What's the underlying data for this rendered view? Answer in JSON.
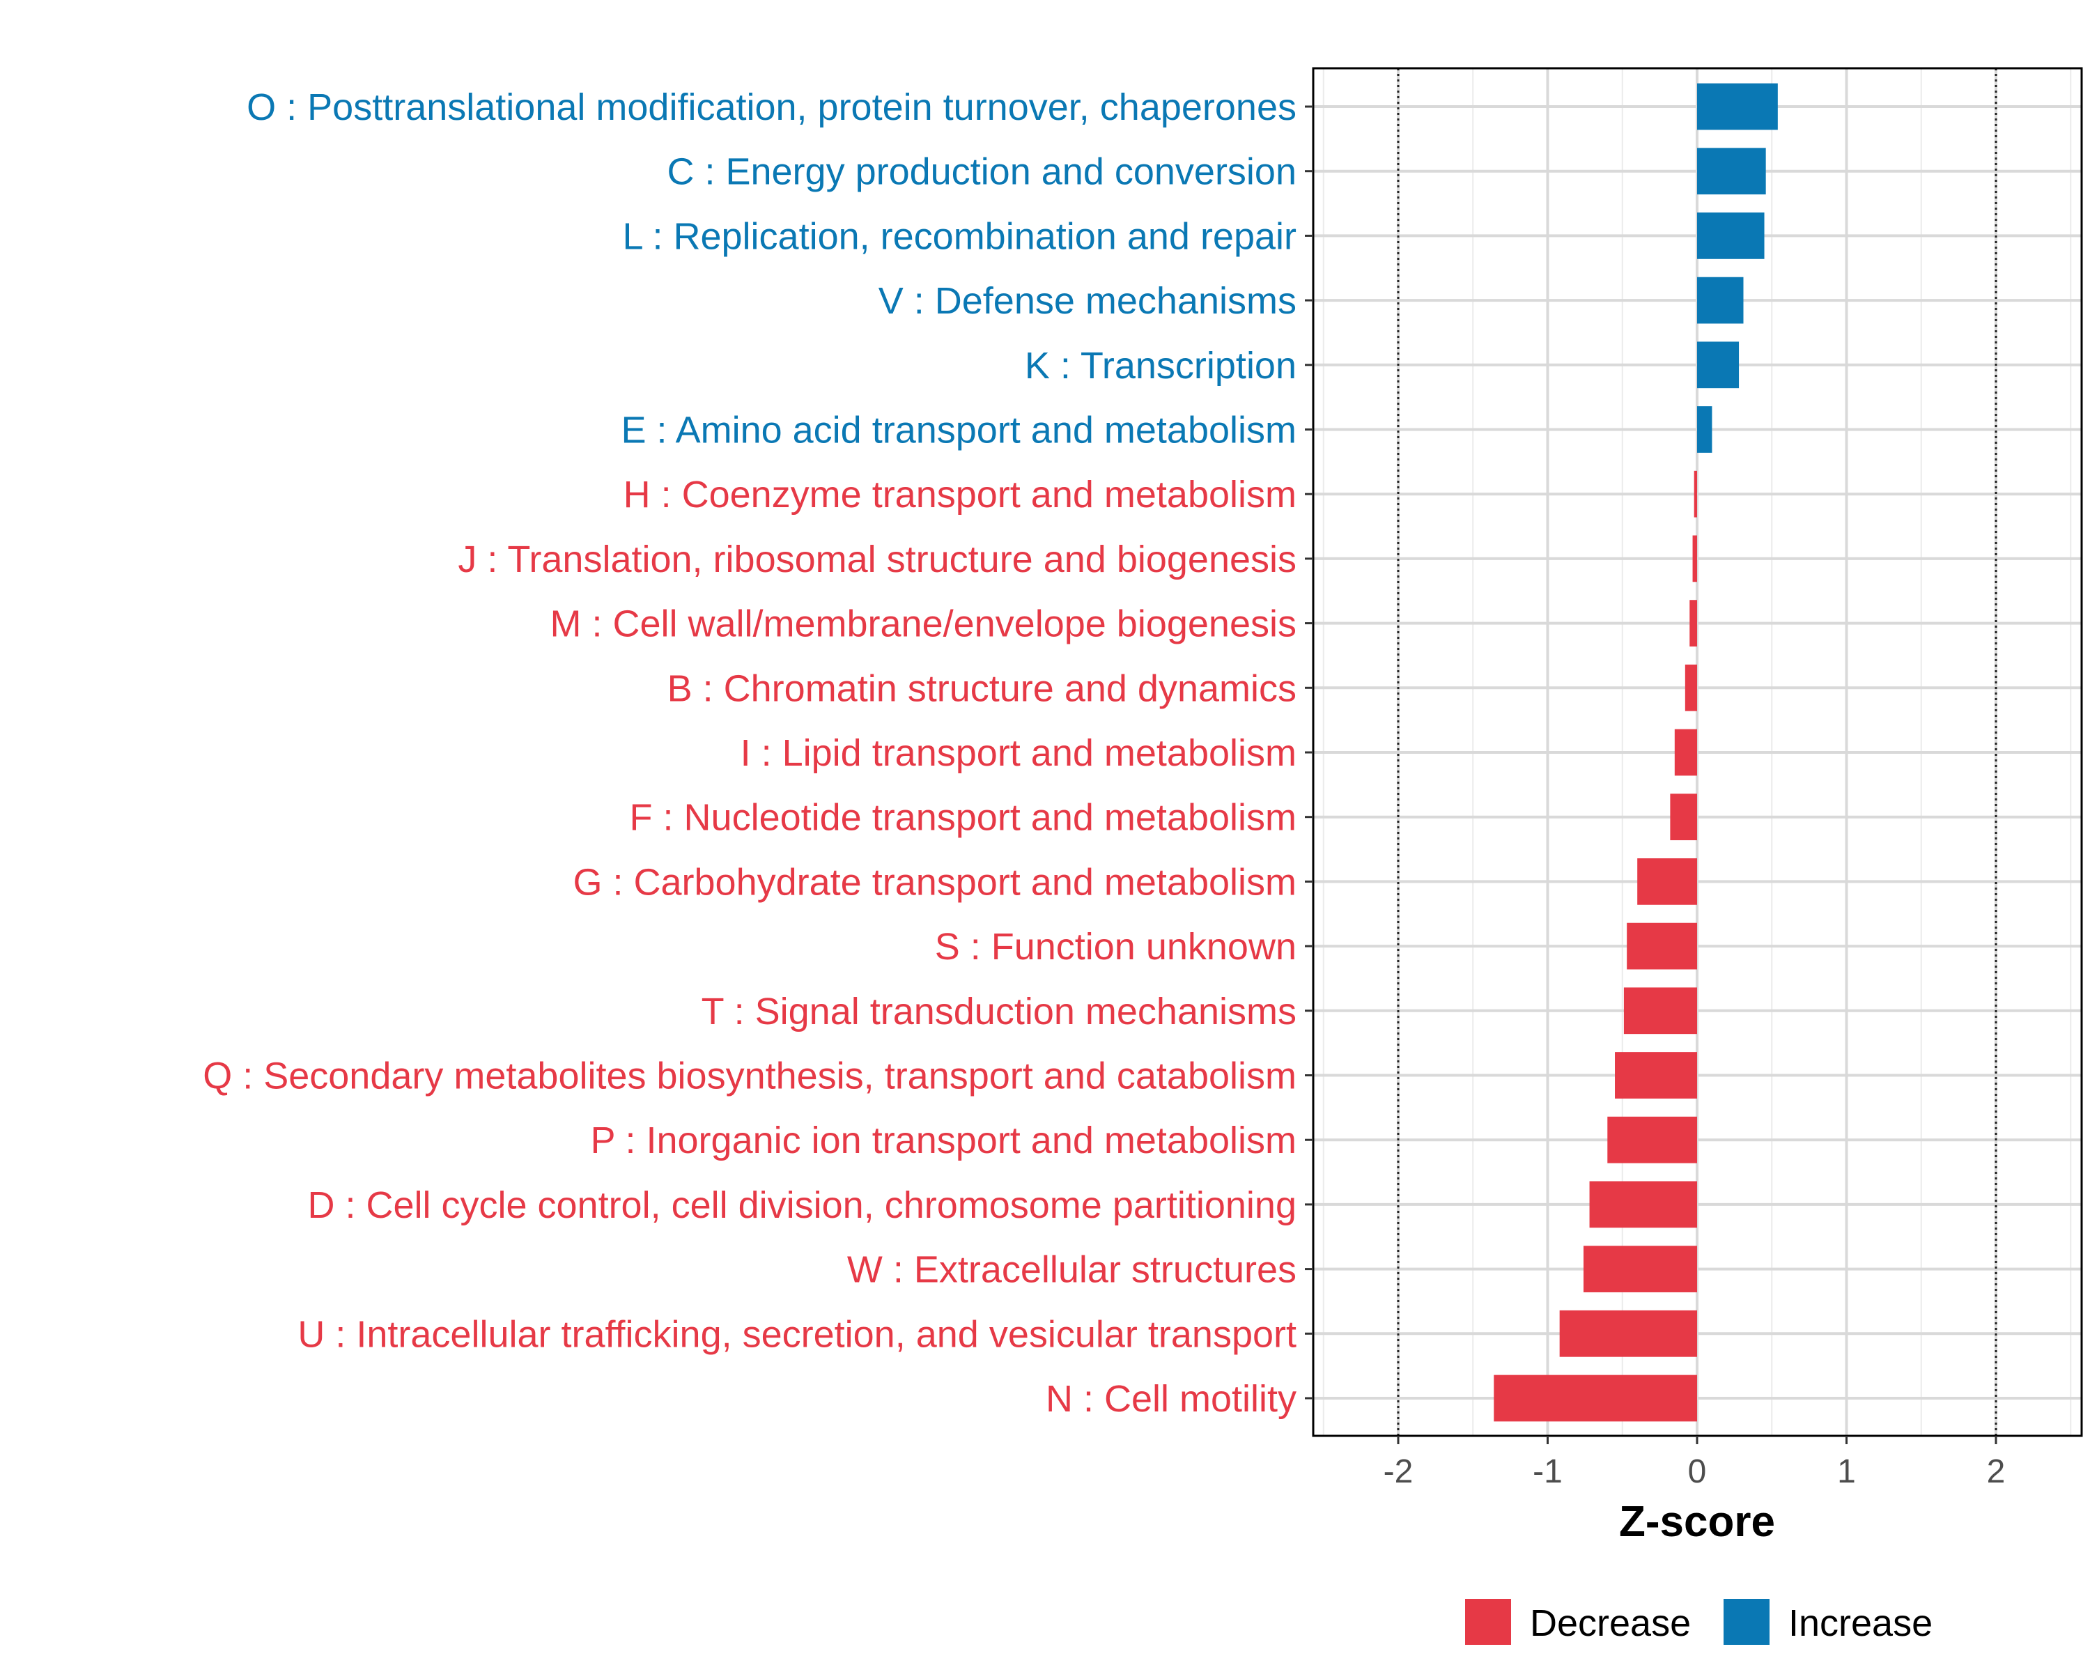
{
  "chart_data": {
    "type": "bar",
    "orientation": "horizontal",
    "xlabel": "Z-score",
    "xlim": [
      -2.6,
      2.6
    ],
    "xticks": [
      -2,
      -1,
      0,
      1,
      2
    ],
    "xtick_labels": [
      "-2",
      "-1",
      "0",
      "1",
      "2"
    ],
    "reference_lines": [
      -2,
      2
    ],
    "grid": true,
    "legend_position": "bottom",
    "colors": {
      "Decrease": "#E63946",
      "Increase": "#0A78B4"
    },
    "legend": [
      {
        "label": "Decrease",
        "color": "#E63946"
      },
      {
        "label": "Increase",
        "color": "#0A78B4"
      }
    ],
    "categories": [
      "O : Posttranslational modification, protein turnover, chaperones",
      "C : Energy production and conversion",
      "L : Replication, recombination and repair",
      "V : Defense mechanisms",
      "K : Transcription",
      "E : Amino acid transport and metabolism",
      "H : Coenzyme transport and metabolism",
      "J : Translation, ribosomal structure and biogenesis",
      "M : Cell wall/membrane/envelope biogenesis",
      "B : Chromatin structure and dynamics",
      "I : Lipid transport and metabolism",
      "F : Nucleotide transport and metabolism",
      "G : Carbohydrate transport and metabolism",
      "S : Function unknown",
      "T : Signal transduction mechanisms",
      "Q : Secondary metabolites biosynthesis, transport and catabolism",
      "P : Inorganic ion transport and metabolism",
      "D : Cell cycle control, cell division, chromosome partitioning",
      "W : Extracellular structures",
      "U : Intracellular trafficking, secretion, and vesicular transport",
      "N : Cell motility"
    ],
    "values": [
      0.54,
      0.46,
      0.45,
      0.31,
      0.28,
      0.1,
      -0.02,
      -0.03,
      -0.05,
      -0.08,
      -0.15,
      -0.18,
      -0.4,
      -0.47,
      -0.49,
      -0.55,
      -0.6,
      -0.72,
      -0.76,
      -0.92,
      -1.36
    ],
    "direction": [
      "Increase",
      "Increase",
      "Increase",
      "Increase",
      "Increase",
      "Increase",
      "Decrease",
      "Decrease",
      "Decrease",
      "Decrease",
      "Decrease",
      "Decrease",
      "Decrease",
      "Decrease",
      "Decrease",
      "Decrease",
      "Decrease",
      "Decrease",
      "Decrease",
      "Decrease",
      "Decrease"
    ]
  }
}
